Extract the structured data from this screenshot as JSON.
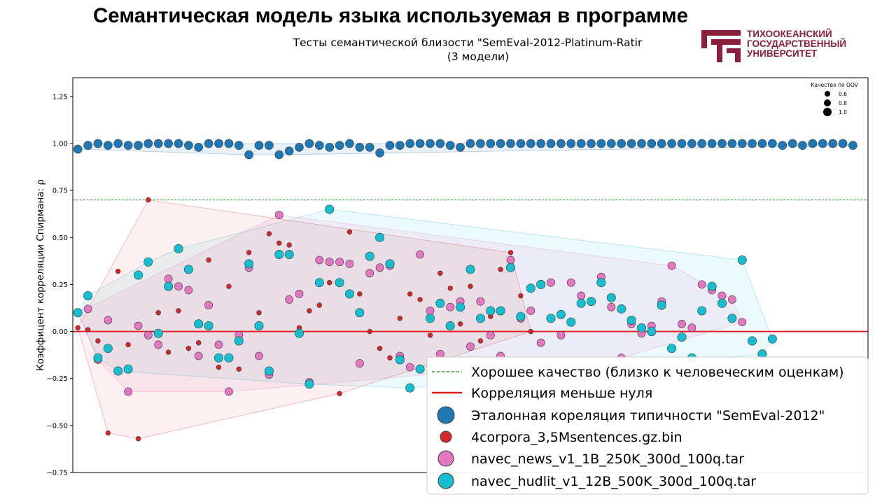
{
  "slide": {
    "title": "Семантическая модель языка используемая в программе",
    "logo_lines": [
      "ТИХООКЕАНСКИЙ",
      "ГОСУДАРСТВЕННЫЙ",
      "УНИВЕРСИТЕТ"
    ],
    "logo_color": "#8b1f3c"
  },
  "chart_data": {
    "type": "scatter",
    "title_lines": [
      "Тесты семантической близости \"SemEval-2012-Platinum-Ratir",
      "(3 модели)"
    ],
    "xlabel": "",
    "ylabel": "Коэффицент корреляции Спирмана: ρ",
    "ylim": [
      -0.75,
      1.35
    ],
    "xlim": [
      -0.5,
      78.5
    ],
    "yticks": [
      -0.75,
      -0.5,
      -0.25,
      0.0,
      0.25,
      0.5,
      0.75,
      1.0,
      1.25
    ],
    "ytick_labels": [
      "−0.75",
      "−0.50",
      "−0.25",
      "0.00",
      "0.25",
      "0.50",
      "0.75",
      "1.00",
      "1.25"
    ],
    "grid": false,
    "reference_lines": [
      {
        "name": "Хорошее качество (близко к человеческим оценкам)",
        "y": 0.7,
        "color": "#2ca02c",
        "style": "dashed"
      },
      {
        "name": "Корреляция меньше нуля",
        "y": 0.0,
        "color": "#e31a1c",
        "style": "solid"
      }
    ],
    "size_legend": {
      "title": "Качество по OOV",
      "entries": [
        "0.6",
        "0.8",
        "1.0"
      ]
    },
    "series": [
      {
        "name": "Эталонная кореляция типичности \"SemEval-2012\"",
        "color": "#1f77b4",
        "points": [
          [
            0,
            0.97
          ],
          [
            1,
            0.99
          ],
          [
            2,
            1.0
          ],
          [
            3,
            0.99
          ],
          [
            4,
            1.0
          ],
          [
            5,
            0.99
          ],
          [
            6,
            0.99
          ],
          [
            7,
            1.0
          ],
          [
            8,
            1.0
          ],
          [
            9,
            1.0
          ],
          [
            10,
            1.0
          ],
          [
            11,
            0.99
          ],
          [
            12,
            0.98
          ],
          [
            13,
            1.0
          ],
          [
            14,
            1.0
          ],
          [
            15,
            1.0
          ],
          [
            16,
            0.99
          ],
          [
            17,
            0.94
          ],
          [
            18,
            0.99
          ],
          [
            19,
            0.99
          ],
          [
            20,
            0.94
          ],
          [
            21,
            0.96
          ],
          [
            22,
            0.98
          ],
          [
            23,
            1.0
          ],
          [
            24,
            0.99
          ],
          [
            25,
            0.98
          ],
          [
            26,
            0.99
          ],
          [
            27,
            1.0
          ],
          [
            28,
            0.98
          ],
          [
            29,
            0.98
          ],
          [
            30,
            0.95
          ],
          [
            31,
            0.99
          ],
          [
            32,
            0.99
          ],
          [
            33,
            1.0
          ],
          [
            34,
            1.0
          ],
          [
            35,
            1.0
          ],
          [
            36,
            1.0
          ],
          [
            37,
            0.99
          ],
          [
            38,
            0.98
          ],
          [
            39,
            1.0
          ],
          [
            40,
            1.0
          ],
          [
            41,
            1.0
          ],
          [
            42,
            1.0
          ],
          [
            43,
            1.0
          ],
          [
            44,
            1.0
          ],
          [
            45,
            1.0
          ],
          [
            46,
            1.0
          ],
          [
            47,
            1.0
          ],
          [
            48,
            1.0
          ],
          [
            49,
            1.0
          ],
          [
            50,
            1.0
          ],
          [
            51,
            1.0
          ],
          [
            52,
            1.0
          ],
          [
            53,
            1.0
          ],
          [
            54,
            1.0
          ],
          [
            55,
            1.0
          ],
          [
            56,
            1.0
          ],
          [
            57,
            1.0
          ],
          [
            58,
            1.0
          ],
          [
            59,
            1.0
          ],
          [
            60,
            1.0
          ],
          [
            61,
            1.0
          ],
          [
            62,
            1.0
          ],
          [
            63,
            1.0
          ],
          [
            64,
            1.0
          ],
          [
            65,
            1.0
          ],
          [
            66,
            1.0
          ],
          [
            67,
            1.0
          ],
          [
            68,
            1.0
          ],
          [
            69,
            1.0
          ],
          [
            70,
            0.99
          ],
          [
            71,
            1.0
          ],
          [
            72,
            0.99
          ],
          [
            73,
            1.0
          ],
          [
            74,
            1.0
          ],
          [
            75,
            1.0
          ],
          [
            76,
            1.0
          ],
          [
            77,
            0.99
          ]
        ]
      },
      {
        "name": "4corpora_3,5Msentences.gz.bin",
        "color": "#d62728",
        "points": [
          [
            0,
            0.02
          ],
          [
            1,
            0.01
          ],
          [
            2,
            -0.05
          ],
          [
            3,
            -0.54
          ],
          [
            4,
            0.32
          ],
          [
            5,
            -0.07
          ],
          [
            6,
            -0.57
          ],
          [
            7,
            0.7
          ],
          [
            8,
            0.1
          ],
          [
            9,
            -0.11
          ],
          [
            10,
            0.11
          ],
          [
            11,
            -0.09
          ],
          [
            12,
            -0.06
          ],
          [
            13,
            0.38
          ],
          [
            14,
            -0.19
          ],
          [
            15,
            0.24
          ],
          [
            16,
            -0.2
          ],
          [
            17,
            0.42
          ],
          [
            18,
            0.1
          ],
          [
            19,
            0.52
          ],
          [
            20,
            0.47
          ],
          [
            21,
            0.46
          ],
          [
            22,
            0.02
          ],
          [
            23,
            0.11
          ],
          [
            24,
            0.14
          ],
          [
            25,
            0.26
          ],
          [
            26,
            -0.33
          ],
          [
            27,
            0.53
          ],
          [
            28,
            0.2
          ],
          [
            29,
            0.0
          ],
          [
            30,
            -0.09
          ],
          [
            31,
            -0.14
          ],
          [
            32,
            0.07
          ],
          [
            33,
            0.2
          ],
          [
            34,
            0.17
          ],
          [
            35,
            -0.02
          ],
          [
            36,
            0.31
          ],
          [
            37,
            0.23
          ],
          [
            38,
            0.04
          ],
          [
            39,
            0.24
          ],
          [
            40,
            -0.05
          ],
          [
            41,
            0.08
          ],
          [
            42,
            0.33
          ],
          [
            43,
            0.42
          ],
          [
            44,
            0.19
          ],
          [
            45,
            0.0
          ]
        ]
      },
      {
        "name": "navec_news_v1_1B_250K_300d_100q.tar",
        "color": "#e377c2",
        "points": [
          [
            0,
            0.1
          ],
          [
            1,
            0.12
          ],
          [
            2,
            -0.15
          ],
          [
            3,
            0.06
          ],
          [
            4,
            -0.21
          ],
          [
            5,
            -0.32
          ],
          [
            6,
            0.03
          ],
          [
            7,
            -0.02
          ],
          [
            8,
            -0.07
          ],
          [
            9,
            0.28
          ],
          [
            10,
            0.24
          ],
          [
            11,
            0.22
          ],
          [
            12,
            -0.13
          ],
          [
            13,
            0.14
          ],
          [
            14,
            -0.07
          ],
          [
            15,
            -0.32
          ],
          [
            16,
            -0.02
          ],
          [
            17,
            0.34
          ],
          [
            18,
            -0.13
          ],
          [
            19,
            -0.23
          ],
          [
            20,
            0.62
          ],
          [
            21,
            0.17
          ],
          [
            22,
            0.2
          ],
          [
            23,
            -0.27
          ],
          [
            24,
            0.38
          ],
          [
            25,
            0.37
          ],
          [
            26,
            0.37
          ],
          [
            27,
            0.36
          ],
          [
            28,
            -0.17
          ],
          [
            29,
            0.31
          ],
          [
            30,
            0.34
          ],
          [
            31,
            0.35
          ],
          [
            32,
            -0.13
          ],
          [
            33,
            -0.19
          ],
          [
            34,
            0.41
          ],
          [
            35,
            0.11
          ],
          [
            36,
            -0.12
          ],
          [
            37,
            0.13
          ],
          [
            38,
            0.16
          ],
          [
            39,
            -0.08
          ],
          [
            40,
            0.16
          ],
          [
            41,
            -0.02
          ],
          [
            42,
            -0.13
          ],
          [
            43,
            0.38
          ],
          [
            44,
            0.07
          ],
          [
            45,
            0.11
          ],
          [
            46,
            -0.06
          ],
          [
            47,
            0.26
          ],
          [
            48,
            -0.02
          ],
          [
            49,
            0.26
          ],
          [
            50,
            0.19
          ],
          [
            51,
            0.16
          ],
          [
            52,
            0.29
          ],
          [
            53,
            0.13
          ],
          [
            54,
            -0.14
          ],
          [
            55,
            0.04
          ],
          [
            56,
            -0.01
          ],
          [
            57,
            0.03
          ],
          [
            58,
            0.16
          ],
          [
            59,
            0.35
          ],
          [
            60,
            0.04
          ],
          [
            61,
            0.02
          ],
          [
            62,
            0.25
          ],
          [
            63,
            0.22
          ],
          [
            64,
            0.19
          ],
          [
            65,
            0.17
          ],
          [
            66,
            0.05
          ]
        ]
      },
      {
        "name": "navec_hudlit_v1_12B_500K_300d_100q.tar",
        "color": "#17becf",
        "points": [
          [
            0,
            0.1
          ],
          [
            1,
            0.19
          ],
          [
            2,
            -0.14
          ],
          [
            3,
            -0.09
          ],
          [
            4,
            -0.21
          ],
          [
            5,
            -0.2
          ],
          [
            6,
            0.3
          ],
          [
            7,
            0.37
          ],
          [
            8,
            -0.01
          ],
          [
            9,
            0.24
          ],
          [
            10,
            0.44
          ],
          [
            11,
            0.33
          ],
          [
            12,
            0.04
          ],
          [
            13,
            0.03
          ],
          [
            14,
            -0.14
          ],
          [
            15,
            -0.14
          ],
          [
            16,
            -0.05
          ],
          [
            17,
            0.36
          ],
          [
            18,
            0.03
          ],
          [
            19,
            -0.21
          ],
          [
            20,
            0.41
          ],
          [
            21,
            0.41
          ],
          [
            22,
            -0.01
          ],
          [
            23,
            -0.28
          ],
          [
            24,
            0.26
          ],
          [
            25,
            0.65
          ],
          [
            26,
            0.26
          ],
          [
            27,
            0.2
          ],
          [
            28,
            0.1
          ],
          [
            29,
            0.4
          ],
          [
            30,
            0.5
          ],
          [
            31,
            0.36
          ],
          [
            32,
            -0.15
          ],
          [
            33,
            -0.3
          ],
          [
            34,
            -0.2
          ],
          [
            35,
            0.07
          ],
          [
            36,
            0.15
          ],
          [
            37,
            0.03
          ],
          [
            38,
            0.13
          ],
          [
            39,
            0.33
          ],
          [
            40,
            0.07
          ],
          [
            41,
            0.11
          ],
          [
            42,
            0.11
          ],
          [
            43,
            0.34
          ],
          [
            44,
            0.08
          ],
          [
            45,
            0.23
          ],
          [
            46,
            0.25
          ],
          [
            47,
            0.07
          ],
          [
            48,
            0.09
          ],
          [
            49,
            0.05
          ],
          [
            50,
            0.15
          ],
          [
            51,
            0.16
          ],
          [
            52,
            0.26
          ],
          [
            53,
            0.18
          ],
          [
            54,
            0.12
          ],
          [
            55,
            0.06
          ],
          [
            56,
            0.02
          ],
          [
            57,
            0.0
          ],
          [
            58,
            0.14
          ],
          [
            59,
            -0.09
          ],
          [
            60,
            -0.03
          ],
          [
            61,
            -0.14
          ],
          [
            62,
            0.11
          ],
          [
            63,
            0.24
          ],
          [
            64,
            0.15
          ],
          [
            65,
            0.07
          ],
          [
            66,
            0.38
          ],
          [
            67,
            -0.05
          ],
          [
            68,
            -0.12
          ],
          [
            69,
            -0.04
          ]
        ]
      }
    ]
  }
}
